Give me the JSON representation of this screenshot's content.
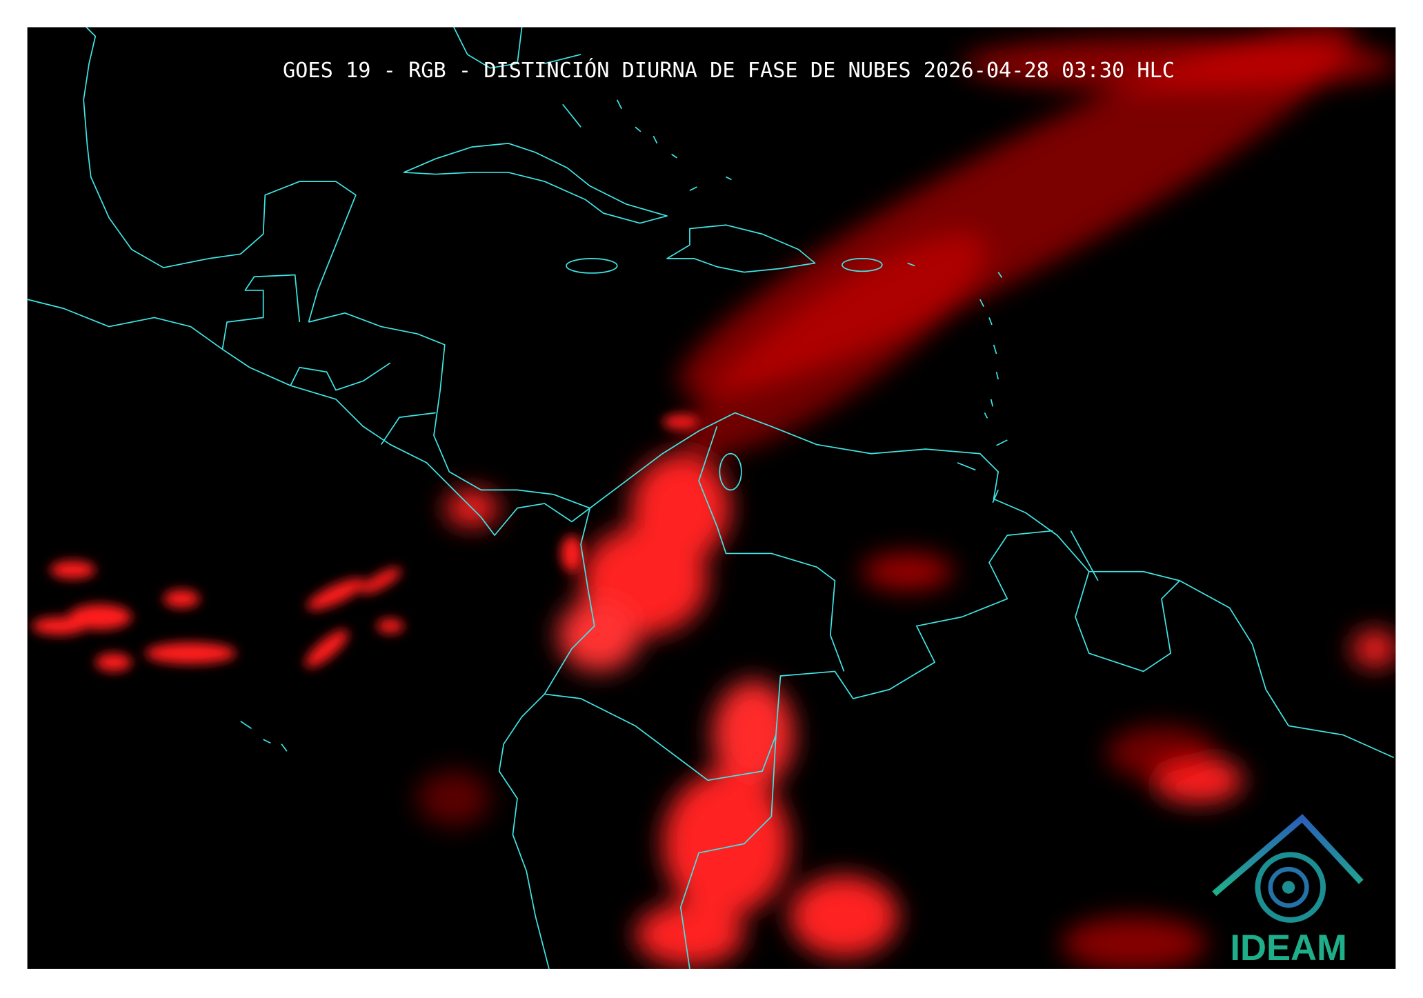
{
  "header": {
    "title": "GOES 19 - RGB - DISTINCIÓN DIURNA DE FASE DE NUBES 2026-04-28 03:30 HLC"
  },
  "logo": {
    "text": "IDEAM"
  }
}
